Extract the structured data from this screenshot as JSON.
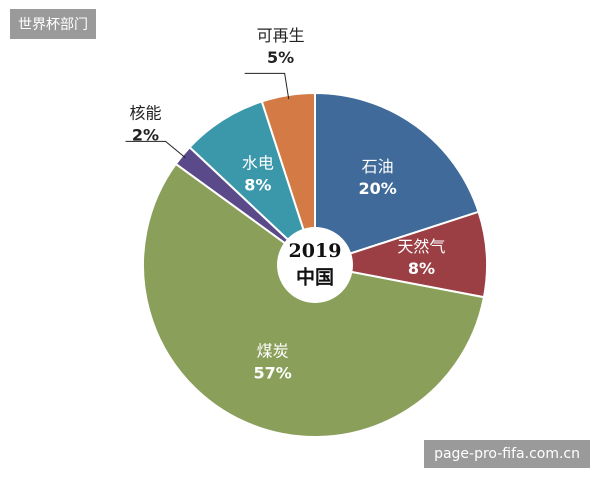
{
  "badge": "世界杯部门",
  "watermark": "page-pro-fifa.com.cn",
  "chart_data": {
    "type": "pie",
    "center_text": "2019",
    "center_subtext": "中国",
    "categories": [
      "石油",
      "天然气",
      "煤炭",
      "核能",
      "水电",
      "可再生"
    ],
    "values": [
      20,
      8,
      57,
      2,
      8,
      5
    ],
    "value_labels": [
      "20%",
      "8%",
      "57%",
      "2%",
      "8%",
      "5%"
    ],
    "colors": [
      "#3f6a9a",
      "#9b3f45",
      "#8aa05a",
      "#5b4a8a",
      "#3b98ab",
      "#d37a45"
    ]
  }
}
